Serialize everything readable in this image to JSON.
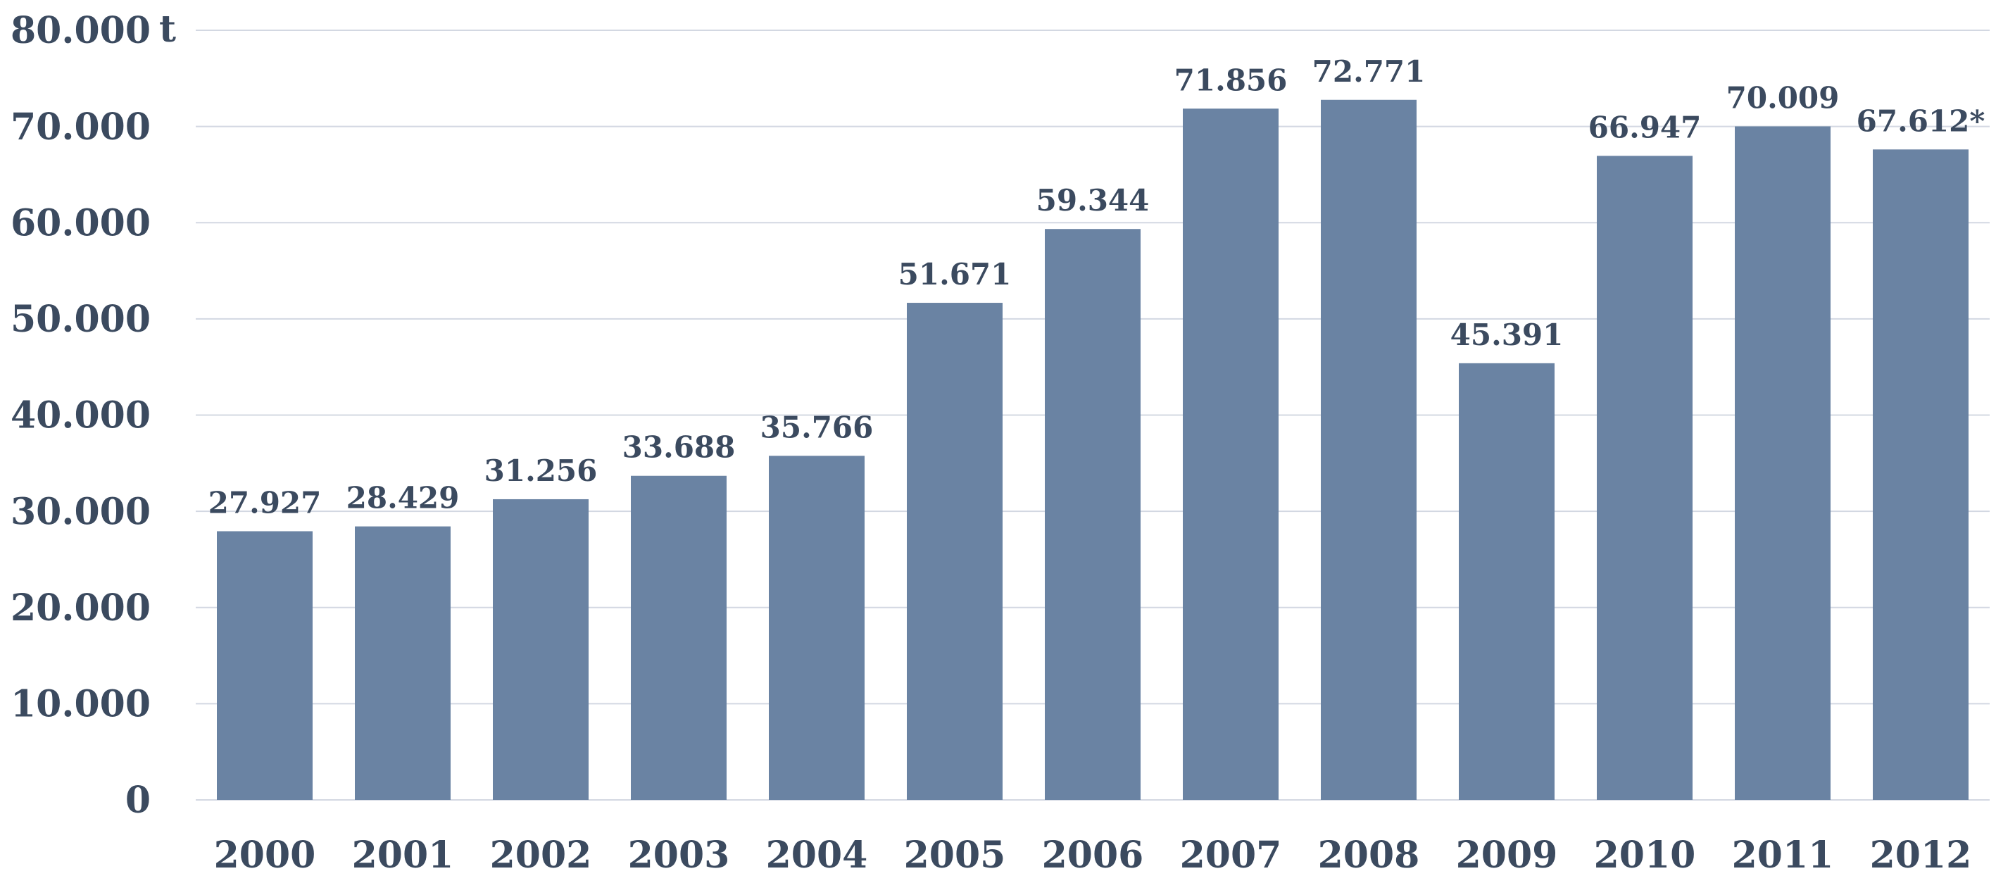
{
  "chart_data": {
    "type": "bar",
    "categories": [
      "2000",
      "2001",
      "2002",
      "2003",
      "2004",
      "2005",
      "2006",
      "2007",
      "2008",
      "2009",
      "2010",
      "2011",
      "2012"
    ],
    "values": [
      27927,
      28429,
      31256,
      33688,
      35766,
      51671,
      59344,
      71856,
      72771,
      45391,
      66947,
      70009,
      67612
    ],
    "value_labels": [
      "27.927",
      "28.429",
      "31.256",
      "33.688",
      "35.766",
      "51.671",
      "59.344",
      "71.856",
      "72.771",
      "45.391",
      "66.947",
      "70.009",
      "67.612*"
    ],
    "y_ticks": [
      0,
      10000,
      20000,
      30000,
      40000,
      50000,
      60000,
      70000,
      80000
    ],
    "y_tick_labels": [
      "0",
      "10.000",
      "20.000",
      "30.000",
      "40.000",
      "50.000",
      "60.000",
      "70.000",
      "80.000"
    ],
    "ylabel": "t",
    "ylim": [
      0,
      80000
    ],
    "grid": true,
    "legend": "none"
  },
  "colors": {
    "bar": "#6a83a3",
    "text": "#3b4a5f",
    "grid": "#d3d8e2"
  }
}
